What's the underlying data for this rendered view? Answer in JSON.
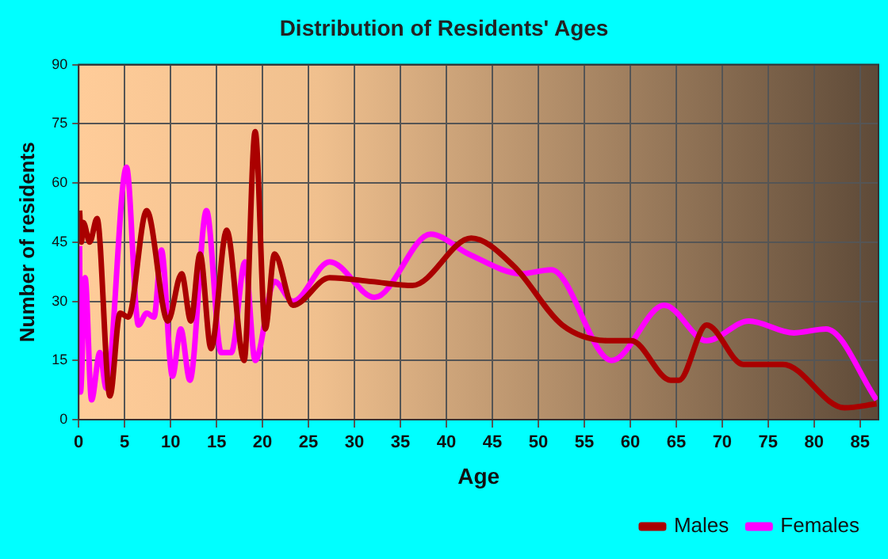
{
  "chart_data": {
    "type": "line",
    "title": "Distribution of Residents' Ages",
    "xlabel": "Age",
    "ylabel": "Number of residents",
    "xlim": [
      0,
      87
    ],
    "xticks": [
      0,
      5,
      10,
      15,
      20,
      25,
      30,
      35,
      40,
      45,
      50,
      55,
      60,
      65,
      70,
      75,
      80,
      85
    ],
    "ylim": [
      0,
      90
    ],
    "yticks": [
      0,
      15,
      30,
      45,
      60,
      75,
      90
    ],
    "grid": true,
    "legend": "bottom right",
    "marker": "none",
    "line_style": "solid",
    "series": [
      {
        "name": "Males",
        "color": "#aa0000",
        "x": [
          0.1,
          0.3,
          0.5,
          1.2,
          2.0,
          3.4,
          4.5,
          5.4,
          7.4,
          9.7,
          11.2,
          12.2,
          13.2,
          14.4,
          16.1,
          18.0,
          19.2,
          20.3,
          21.3,
          23.3,
          27.3,
          31.9,
          36.3,
          42.7,
          47.3,
          52.6,
          57.8,
          60.1,
          64.4,
          65.3,
          68.3,
          72.3,
          76.6,
          83.3,
          86.8
        ],
        "values": [
          53,
          45,
          50,
          45,
          51,
          6,
          27,
          26,
          53,
          25,
          37,
          25,
          42,
          18,
          48,
          15,
          73,
          23,
          42,
          29,
          36,
          35,
          34,
          46,
          39,
          24,
          20,
          20,
          10,
          10,
          24,
          14,
          14,
          3,
          4
        ]
      },
      {
        "name": "Females",
        "color": "#ff00ff",
        "x": [
          0.1,
          0.2,
          0.7,
          1.4,
          2.3,
          3.0,
          5.2,
          6.5,
          7.4,
          8.2,
          9.0,
          10.2,
          11.1,
          12.1,
          13.9,
          15.5,
          16.6,
          18.1,
          19.2,
          21.3,
          23.3,
          27.3,
          32.2,
          38.3,
          42.4,
          48.2,
          51.4,
          58.0,
          63.7,
          68.3,
          72.9,
          77.8,
          81.3,
          86.8
        ],
        "values": [
          44,
          7,
          36,
          5,
          17,
          8,
          64,
          24,
          27,
          26,
          43,
          11,
          23,
          10,
          53,
          17,
          17,
          40,
          15,
          35,
          30,
          40,
          31,
          47,
          42,
          37,
          38,
          15,
          29,
          20,
          25,
          22,
          23,
          5
        ]
      }
    ]
  }
}
